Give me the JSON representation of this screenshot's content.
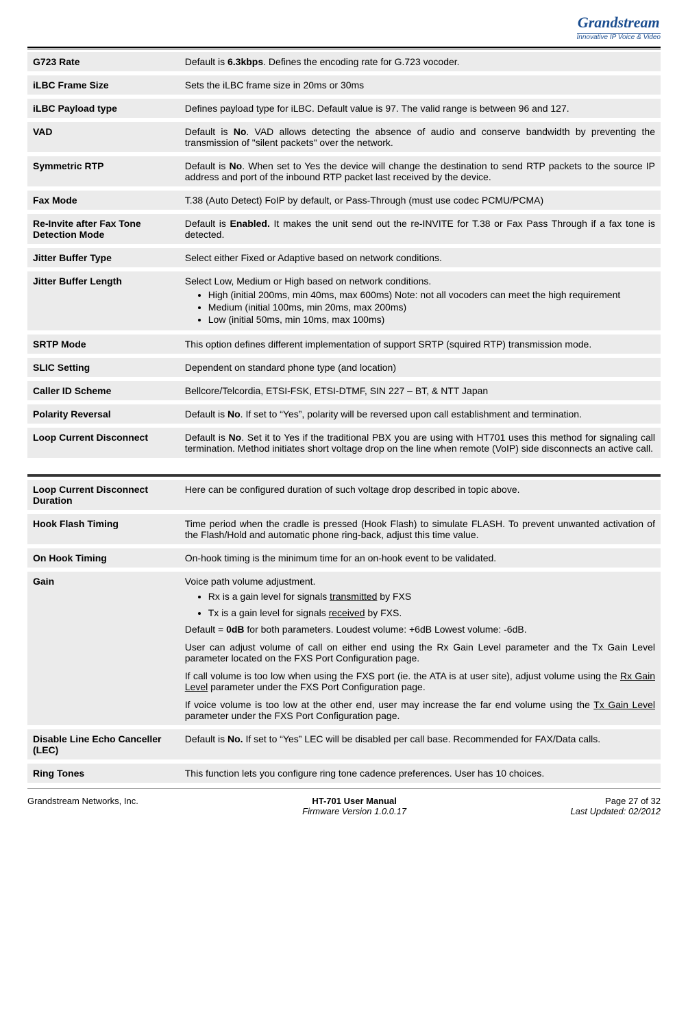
{
  "logo": {
    "brand": "Grandstream",
    "tagline": "Innovative IP Voice & Video"
  },
  "rows1": [
    {
      "label": "G723 Rate",
      "html": "Default is <span class=b>6.3kbps</span>. Defines the encoding rate for G.723 vocoder."
    },
    {
      "label": "iLBC Frame Size",
      "html": "Sets the iLBC frame size in 20ms or 30ms"
    },
    {
      "label": "iLBC Payload type",
      "html": "Defines payload type for iLBC. Default value is 97. The valid range is between 96 and 127."
    },
    {
      "label": "VAD",
      "html": "Default is <span class=b>No</span>. VAD allows detecting the absence of audio and conserve bandwidth by preventing the transmission of \"silent packets\" over the network."
    },
    {
      "label": "Symmetric RTP",
      "html": "Default is <span class=b>No</span>. When set to Yes the device will change the destination to send RTP packets to the source IP address and port of the inbound RTP packet last received by the device."
    },
    {
      "label": "Fax Mode",
      "html": "T.38 (Auto Detect) FoIP by default, or Pass-Through (must use codec PCMU/PCMA)"
    },
    {
      "label": "Re-Invite after Fax Tone Detection Mode",
      "html": "Default is <span class=b>Enabled.</span> It makes the unit send out the re-INVITE for T.38 or Fax Pass Through if a fax tone is detected."
    },
    {
      "label": "Jitter Buffer Type",
      "html": "Select either Fixed or Adaptive based on network conditions."
    },
    {
      "label": "Jitter Buffer Length",
      "html": "Select Low, Medium or High based on network conditions.<ul class=bullets><li>High (initial 200ms, min 40ms, max 600ms) Note: not all vocoders can meet the high requirement</li><li>Medium (initial 100ms, min 20ms, max 200ms)</li><li>Low (initial 50ms, min 10ms, max 100ms)</li></ul>"
    },
    {
      "label": "SRTP Mode",
      "html": "This option defines different implementation of support SRTP (squired RTP) transmission mode."
    },
    {
      "label": "SLIC Setting",
      "html": "Dependent on standard phone type (and location)"
    },
    {
      "label": "Caller ID Scheme",
      "html": "Bellcore/Telcordia, ETSI-FSK, ETSI-DTMF, SIN 227 – BT, & NTT Japan"
    },
    {
      "label": "Polarity Reversal",
      "html": "Default is <span class=b>No</span>. If set to “Yes”, polarity will be reversed upon call establishment and termination."
    },
    {
      "label": "Loop Current Disconnect",
      "html": "Default is <span class=b>No</span>. Set it to Yes if the traditional PBX you are using with HT701 uses this method for signaling call termination. Method initiates short voltage drop on the line when remote (VoIP) side disconnects an active call."
    }
  ],
  "rows2": [
    {
      "label": "Loop Current Disconnect Duration",
      "html": "Here can be configured duration of such voltage drop described in topic above."
    },
    {
      "label": "Hook Flash Timing",
      "html": "Time period when the cradle is pressed (Hook Flash) to simulate FLASH. To prevent unwanted activation of the Flash/Hold and automatic phone ring-back, adjust this time value."
    },
    {
      "label": "On Hook Timing",
      "html": "On-hook timing is the minimum time for an on-hook event to be validated."
    },
    {
      "label": "Gain",
      "html": "<div class=p style='margin-bottom:6px'>Voice path volume adjustment.</div><ul class=bullets style='list-style-type:disc'><li style='margin-bottom:8px'>Rx is a gain level for signals <span class=u>transmitted</span> by FXS</li><li style='margin-bottom:8px'>Tx is a gain level for signals <span class=u>received</span> by FXS.</li></ul><div class=p>Default =  <span class=b>0dB</span> for both parameters. Loudest volume: +6dB  Lowest volume:  -6dB.</div><div class=p>User can adjust volume of call on either end using the Rx Gain Level parameter and the Tx Gain Level parameter located on the FXS Port Configuration page.</div><div class=p>If call volume is too low when using the FXS port (ie. the ATA is at user site), adjust volume using the <span class=u>Rx Gain Level</span> parameter under the FXS Port Configuration page.</div><div class=p>If voice volume is too low at the other end, user may increase the far end volume using the <span class=u>Tx Gain Level</span> parameter under the FXS Port Configuration page.</div>"
    },
    {
      "label": "Disable Line Echo Canceller (LEC)",
      "html": "Default is <span class=b>No.</span> If set to “Yes” LEC will be disabled per call base. Recommended for FAX/Data calls."
    },
    {
      "label": "Ring Tones",
      "html": "This function lets you configure ring tone cadence preferences. User has 10 choices."
    }
  ],
  "footer": {
    "left": "Grandstream Networks, Inc.",
    "center_title": "HT-701 User Manual",
    "center_sub": "Firmware Version 1.0.0.17",
    "right_page": "Page 27 of 32",
    "right_date": "Last Updated: 02/2012"
  }
}
